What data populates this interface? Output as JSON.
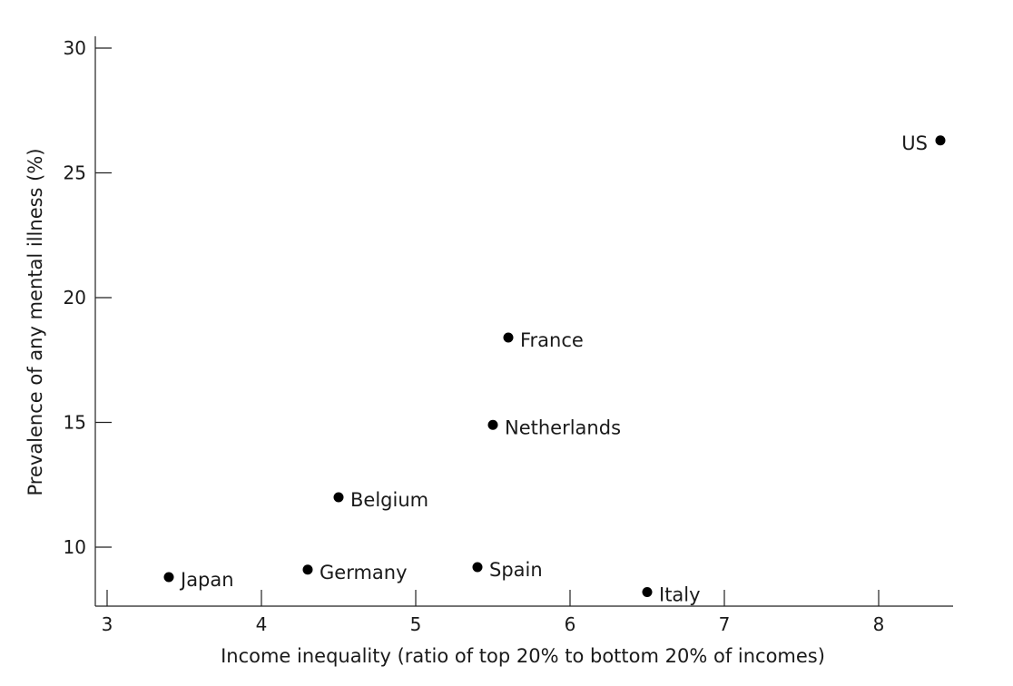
{
  "chart_data": {
    "type": "scatter",
    "title": "",
    "xlabel": "Income inequality (ratio of top 20% to bottom 20% of incomes)",
    "ylabel": "Prevalence of any mental illness (%)",
    "xlim": [
      3,
      8.5
    ],
    "ylim": [
      7.7,
      30.5
    ],
    "x_ticks": [
      "3",
      "4",
      "5",
      "6",
      "7",
      "8"
    ],
    "y_ticks": [
      "10",
      "15",
      "20",
      "25",
      "30"
    ],
    "grid": false,
    "legend": "none",
    "points": [
      {
        "label": "Japan",
        "x": 3.4,
        "y": 8.8,
        "label_side": "right"
      },
      {
        "label": "Germany",
        "x": 4.3,
        "y": 9.1,
        "label_side": "right"
      },
      {
        "label": "Belgium",
        "x": 4.5,
        "y": 12.0,
        "label_side": "right"
      },
      {
        "label": "Spain",
        "x": 5.4,
        "y": 9.2,
        "label_side": "right"
      },
      {
        "label": "Netherlands",
        "x": 5.5,
        "y": 14.9,
        "label_side": "right"
      },
      {
        "label": "France",
        "x": 5.6,
        "y": 18.4,
        "label_side": "right"
      },
      {
        "label": "Italy",
        "x": 6.5,
        "y": 8.2,
        "label_side": "right"
      },
      {
        "label": "US",
        "x": 8.4,
        "y": 26.3,
        "label_side": "left"
      }
    ]
  }
}
